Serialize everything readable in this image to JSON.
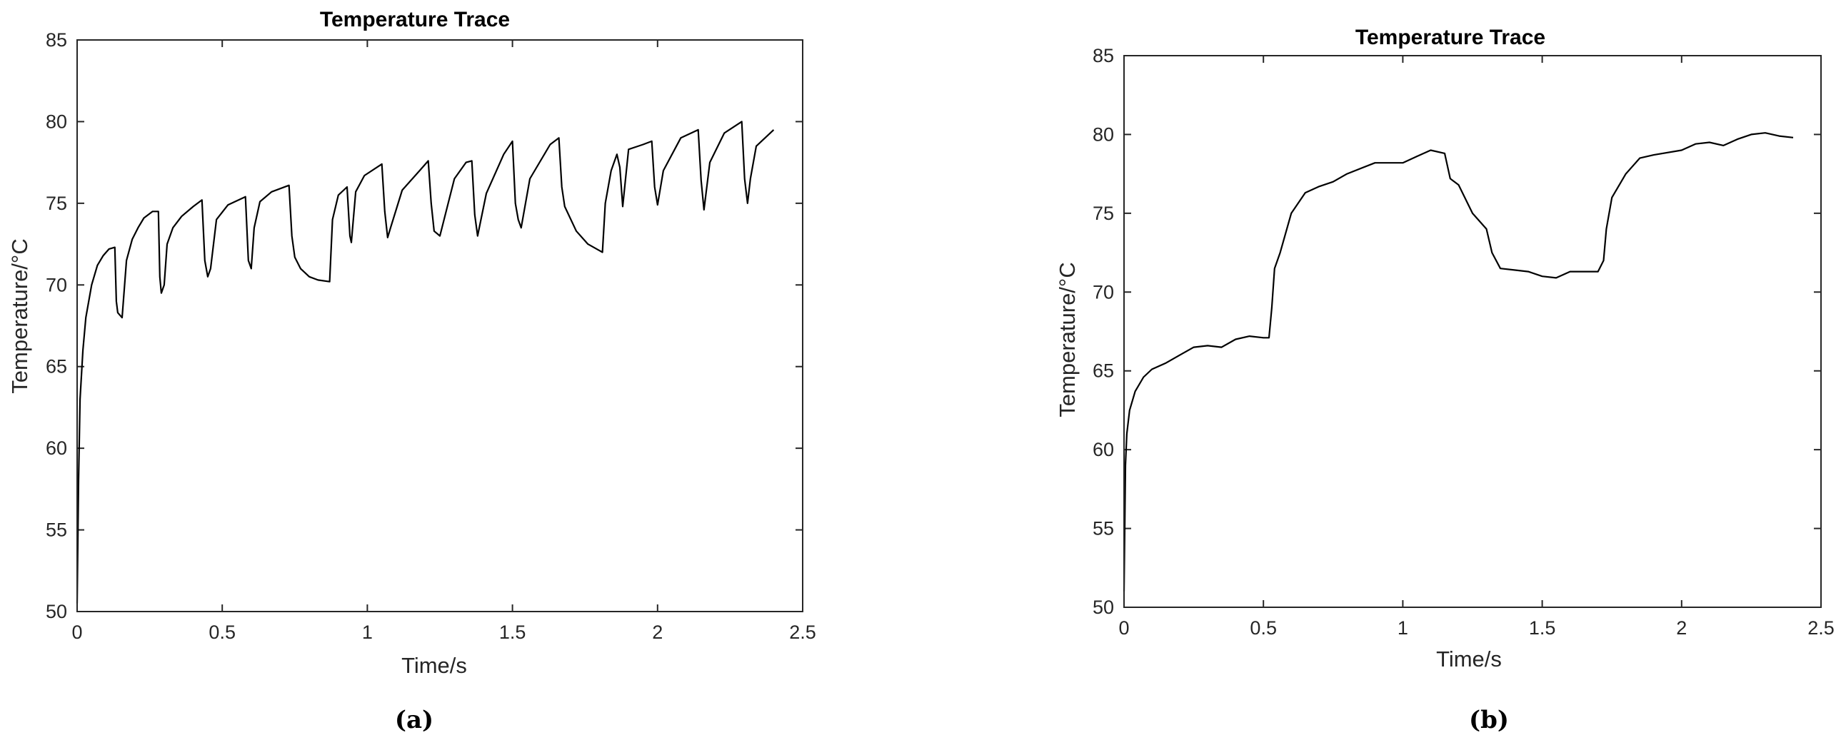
{
  "chart_data": [
    {
      "type": "line",
      "panel_label": "(a)",
      "title": "Temperature Trace",
      "xlabel": "Time/s",
      "ylabel": "Temperature/°C",
      "xlim": [
        0,
        2.5
      ],
      "ylim": [
        50,
        85
      ],
      "xticks": [
        "0",
        "0.5",
        "1",
        "1.5",
        "2",
        "2.5"
      ],
      "yticks": [
        "50",
        "55",
        "60",
        "65",
        "70",
        "75",
        "80",
        "85"
      ],
      "grid": false,
      "series": [
        {
          "x": [
            0.0,
            0.005,
            0.01,
            0.02,
            0.03,
            0.05,
            0.07,
            0.09,
            0.11,
            0.13,
            0.135,
            0.14,
            0.155,
            0.17,
            0.19,
            0.21,
            0.23,
            0.26,
            0.28,
            0.285,
            0.29,
            0.3,
            0.31,
            0.33,
            0.36,
            0.4,
            0.43,
            0.44,
            0.45,
            0.46,
            0.48,
            0.52,
            0.58,
            0.59,
            0.6,
            0.61,
            0.63,
            0.67,
            0.73,
            0.74,
            0.75,
            0.77,
            0.8,
            0.83,
            0.87,
            0.88,
            0.9,
            0.93,
            0.94,
            0.945,
            0.96,
            0.99,
            1.05,
            1.06,
            1.07,
            1.08,
            1.12,
            1.18,
            1.21,
            1.22,
            1.23,
            1.25,
            1.3,
            1.34,
            1.36,
            1.37,
            1.38,
            1.41,
            1.47,
            1.5,
            1.51,
            1.52,
            1.53,
            1.56,
            1.63,
            1.66,
            1.67,
            1.68,
            1.72,
            1.76,
            1.8,
            1.81,
            1.82,
            1.84,
            1.86,
            1.87,
            1.88,
            1.9,
            1.95,
            1.98,
            1.99,
            2.0,
            2.02,
            2.08,
            2.14,
            2.15,
            2.16,
            2.18,
            2.23,
            2.29,
            2.3,
            2.31,
            2.32,
            2.34,
            2.4
          ],
          "y": [
            50.5,
            58,
            63,
            66,
            68,
            70,
            71.2,
            71.8,
            72.2,
            72.3,
            69,
            68.3,
            68,
            71.5,
            72.8,
            73.5,
            74.1,
            74.5,
            74.5,
            70.5,
            69.5,
            70,
            72.5,
            73.5,
            74.2,
            74.8,
            75.2,
            71.5,
            70.5,
            71,
            74,
            74.9,
            75.4,
            71.5,
            71,
            73.5,
            75.1,
            75.7,
            76.1,
            73,
            71.7,
            71,
            70.5,
            70.3,
            70.2,
            74,
            75.5,
            76,
            73,
            72.6,
            75.7,
            76.7,
            77.4,
            74.5,
            72.9,
            73.5,
            75.8,
            77,
            77.6,
            75,
            73.3,
            73,
            76.5,
            77.5,
            77.6,
            74.3,
            73,
            75.6,
            78,
            78.8,
            75,
            74,
            73.5,
            76.5,
            78.6,
            79,
            76,
            74.8,
            73.3,
            72.5,
            72.1,
            72,
            75,
            77,
            78,
            77.2,
            74.8,
            78.3,
            78.6,
            78.8,
            76,
            74.9,
            77,
            79,
            79.5,
            76.4,
            74.6,
            77.5,
            79.3,
            80,
            76.5,
            75,
            76.5,
            78.5,
            79.5
          ]
        }
      ]
    },
    {
      "type": "line",
      "panel_label": "(b)",
      "title": "Temperature Trace",
      "xlabel": "Time/s",
      "ylabel": "Temperature/°C",
      "xlim": [
        0,
        2.5
      ],
      "ylim": [
        50,
        85
      ],
      "xticks": [
        "0",
        "0.5",
        "1",
        "1.5",
        "2",
        "2.5"
      ],
      "yticks": [
        "50",
        "55",
        "60",
        "65",
        "70",
        "75",
        "80",
        "85"
      ],
      "grid": false,
      "series": [
        {
          "x": [
            0.0,
            0.005,
            0.01,
            0.02,
            0.04,
            0.07,
            0.1,
            0.15,
            0.2,
            0.25,
            0.3,
            0.35,
            0.4,
            0.45,
            0.5,
            0.52,
            0.53,
            0.54,
            0.56,
            0.6,
            0.65,
            0.7,
            0.75,
            0.8,
            0.9,
            1.0,
            1.05,
            1.1,
            1.15,
            1.17,
            1.2,
            1.25,
            1.3,
            1.32,
            1.35,
            1.4,
            1.45,
            1.5,
            1.55,
            1.6,
            1.65,
            1.7,
            1.72,
            1.73,
            1.75,
            1.8,
            1.85,
            1.9,
            2.0,
            2.05,
            2.1,
            2.15,
            2.2,
            2.25,
            2.3,
            2.35,
            2.4
          ],
          "y": [
            51,
            59,
            61,
            62.5,
            63.7,
            64.6,
            65.1,
            65.5,
            66,
            66.5,
            66.6,
            66.5,
            67,
            67.2,
            67.1,
            67.1,
            69,
            71.5,
            72.5,
            75,
            76.3,
            76.7,
            77,
            77.5,
            78.2,
            78.2,
            78.6,
            79,
            78.8,
            77.2,
            76.8,
            75,
            74,
            72.5,
            71.5,
            71.4,
            71.3,
            71,
            70.9,
            71.3,
            71.3,
            71.3,
            72,
            74,
            76,
            77.5,
            78.5,
            78.7,
            79,
            79.4,
            79.5,
            79.3,
            79.7,
            80,
            80.1,
            79.9,
            79.8
          ]
        }
      ]
    }
  ]
}
